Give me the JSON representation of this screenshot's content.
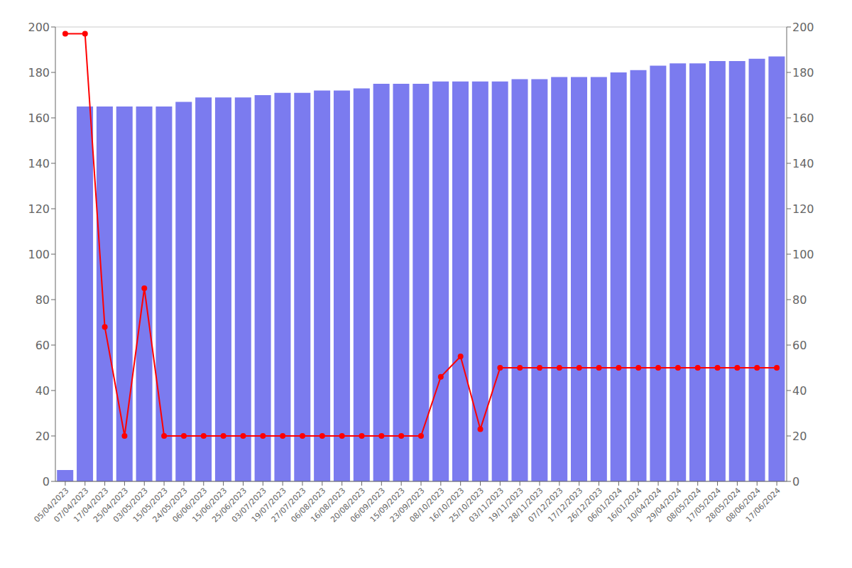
{
  "chart_data": {
    "type": "bar",
    "categories": [
      "05/04/2023",
      "07/04/2023",
      "17/04/2023",
      "25/04/2023",
      "03/05/2023",
      "15/05/2023",
      "24/05/2023",
      "06/06/2023",
      "15/06/2023",
      "25/06/2023",
      "03/07/2023",
      "19/07/2023",
      "27/07/2023",
      "06/08/2023",
      "16/08/2023",
      "20/08/2023",
      "06/09/2023",
      "15/09/2023",
      "23/09/2023",
      "08/10/2023",
      "16/10/2023",
      "25/10/2023",
      "03/11/2023",
      "19/11/2023",
      "28/11/2023",
      "07/12/2023",
      "17/12/2023",
      "26/12/2023",
      "06/01/2024",
      "16/01/2024",
      "10/04/2024",
      "29/04/2024",
      "08/05/2024",
      "17/05/2024",
      "28/05/2024",
      "08/06/2024",
      "17/06/2024"
    ],
    "series": [
      {
        "type": "bar",
        "color": "#7b7bef",
        "values": [
          5,
          165,
          165,
          165,
          165,
          165,
          167,
          169,
          169,
          169,
          170,
          171,
          171,
          172,
          172,
          173,
          175,
          175,
          175,
          176,
          176,
          176,
          176,
          177,
          177,
          178,
          178,
          178,
          180,
          181,
          183,
          184,
          184,
          185,
          185,
          186,
          187
        ]
      },
      {
        "type": "line",
        "color": "#ff0000",
        "marker": "circle",
        "axis": "y2",
        "values": [
          197,
          197,
          68,
          20,
          85,
          20,
          20,
          20,
          20,
          20,
          20,
          20,
          20,
          20,
          20,
          20,
          20,
          20,
          20,
          46,
          55,
          23,
          50,
          50,
          50,
          50,
          50,
          50,
          50,
          50,
          50,
          50,
          50,
          50,
          50,
          50,
          50
        ]
      }
    ],
    "ylim": [
      0,
      200
    ],
    "yticks": [
      0,
      20,
      40,
      60,
      80,
      100,
      120,
      140,
      160,
      180,
      200
    ],
    "y2lim": [
      0,
      200
    ],
    "y2ticks": [
      0,
      20,
      40,
      60,
      80,
      100,
      120,
      140,
      160,
      180,
      200
    ],
    "grid": true
  }
}
